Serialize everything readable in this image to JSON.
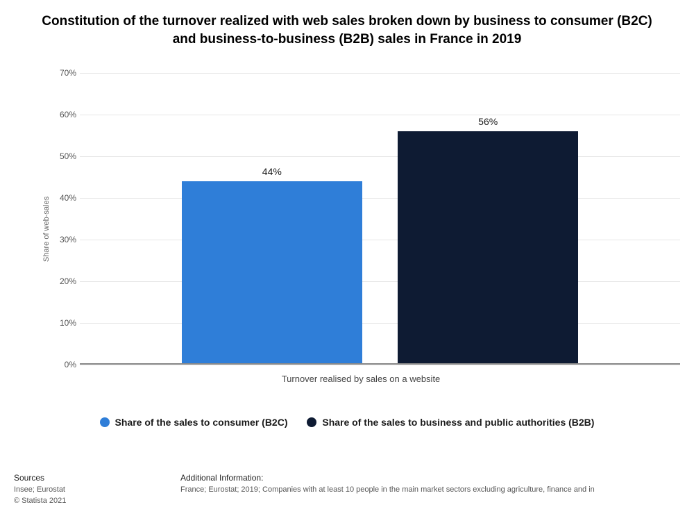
{
  "chart": {
    "type": "bar",
    "title": "Constitution of the turnover realized with web sales broken down by business to consumer (B2C) and business-to-business (B2B) sales in France in 2019",
    "title_fontsize": 19,
    "y_axis_label": "Share of web-sales",
    "x_category_label": "Turnover realised by sales on a website",
    "ylim": [
      0,
      70
    ],
    "ytick_step": 10,
    "y_ticks": [
      0,
      10,
      20,
      30,
      40,
      50,
      60,
      70
    ],
    "tick_suffix": "%",
    "grid_color": "#e6e6e6",
    "axis_color": "#8a8a8a",
    "background_color": "#ffffff",
    "plot_bg": "#ffffff",
    "bar_width_pct": 30,
    "bar_gap_pct": 6,
    "series": [
      {
        "name": "Share of the sales to consumer (B2C)",
        "value": 44,
        "label": "44%",
        "color": "#2f7ed8"
      },
      {
        "name": "Share of the sales to business and public authorities (B2B)",
        "value": 56,
        "label": "56%",
        "color": "#0e1b33"
      }
    ]
  },
  "legend": {
    "items": [
      {
        "color": "#2f7ed8",
        "label": "Share of the sales to consumer (B2C)"
      },
      {
        "color": "#0e1b33",
        "label": "Share of the sales to business and public authorities (B2B)"
      }
    ]
  },
  "footer": {
    "sources_head": "Sources",
    "sources_line1": "Insee; Eurostat",
    "sources_line2": "© Statista 2021",
    "addl_head": "Additional Information:",
    "addl_line": "France; Eurostat; 2019; Companies with at least 10 people in the main market sectors excluding agriculture, finance and in"
  }
}
